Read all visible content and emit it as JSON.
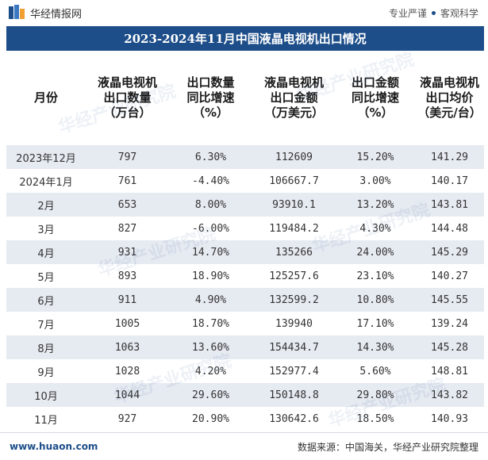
{
  "topbar": {
    "brand": "华经情报网",
    "slogan_left": "专业严谨",
    "slogan_right": "客观科学"
  },
  "title": "2023-2024年11月中国液晶电视机出口情况",
  "table": {
    "headers": [
      "月份",
      "液晶电视机\n出口数量\n（万台）",
      "出口数量\n同比增速\n（%）",
      "液晶电视机\n出口金额\n（万美元）",
      "出口金额\n同比增速\n（%）",
      "液晶电视机\n出口均价\n（美元/台）"
    ],
    "rows": [
      [
        "2023年12月",
        "797",
        "6.30%",
        "112609",
        "15.20%",
        "141.29"
      ],
      [
        "2024年1月",
        "761",
        "-4.40%",
        "106667.7",
        "3.00%",
        "140.17"
      ],
      [
        "2月",
        "653",
        "8.00%",
        "93910.1",
        "13.20%",
        "143.81"
      ],
      [
        "3月",
        "827",
        "-6.00%",
        "119484.2",
        "4.30%",
        "144.48"
      ],
      [
        "4月",
        "931",
        "14.70%",
        "135266",
        "24.00%",
        "145.29"
      ],
      [
        "5月",
        "893",
        "18.90%",
        "125257.6",
        "23.10%",
        "140.27"
      ],
      [
        "6月",
        "911",
        "4.90%",
        "132599.2",
        "10.80%",
        "145.55"
      ],
      [
        "7月",
        "1005",
        "18.70%",
        "139940",
        "17.10%",
        "139.24"
      ],
      [
        "8月",
        "1063",
        "13.60%",
        "154434.7",
        "14.30%",
        "145.28"
      ],
      [
        "9月",
        "1028",
        "4.20%",
        "152977.4",
        "5.60%",
        "148.81"
      ],
      [
        "10月",
        "1044",
        "29.60%",
        "150148.8",
        "29.80%",
        "143.82"
      ],
      [
        "11月",
        "927",
        "20.90%",
        "130642.6",
        "18.50%",
        "140.93"
      ]
    ]
  },
  "footer": {
    "website": "www.huaon.com",
    "source": "数据来源：中国海关，华经产业研究院整理"
  },
  "watermark_text": "华经产业研究院",
  "colors": {
    "accent": "#1d4e89",
    "row_alt": "#e6eaf1",
    "negative": "#4d88c4"
  }
}
